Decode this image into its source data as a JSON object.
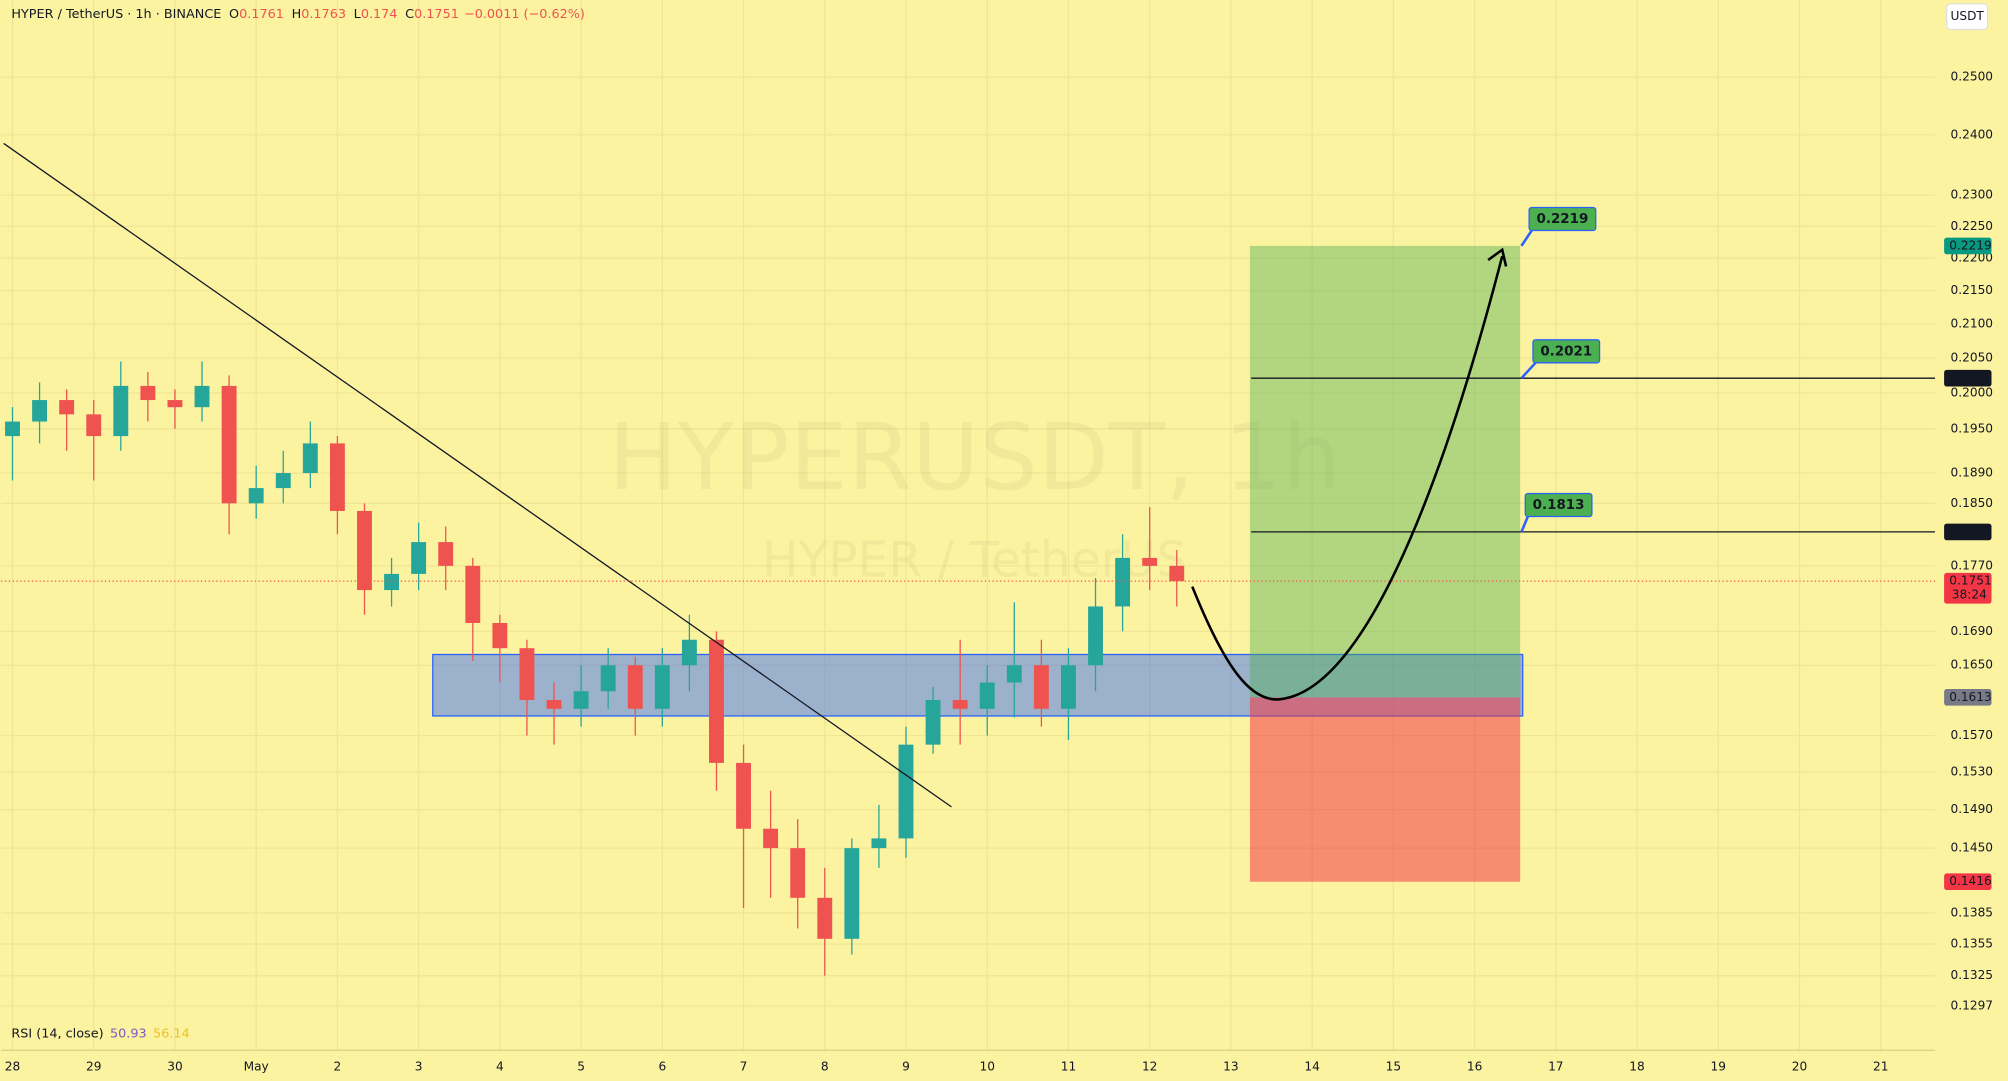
{
  "chart_data": {
    "type": "candlestick",
    "symbol": "HYPER / TetherUS · 1h · BINANCE",
    "ohlc_legend": [
      {
        "label": "O",
        "value": 0.1761
      },
      {
        "label": "H",
        "value": 0.1763
      },
      {
        "label": "L",
        "value": 0.174
      },
      {
        "label": "C",
        "value": 0.1751
      }
    ],
    "change": "−0.0011 (−0.62%)",
    "watermark": "HYPERUSDT, 1h",
    "watermark_sub": "HYPER / TetherUS",
    "currency_button": "USDT",
    "indicator": {
      "name": "RSI (14, close)",
      "values": [
        50.93,
        56.14
      ],
      "colors": [
        "#7e57c2",
        "#e8c22a"
      ]
    },
    "log_scale": true,
    "grid": true,
    "up_color": "#26a69a",
    "down_color": "#ef5350",
    "xlim": [
      -0.14,
      23.67
    ],
    "xticks": [
      {
        "value": 0,
        "label": "28"
      },
      {
        "value": 1,
        "label": "29"
      },
      {
        "value": 2,
        "label": "30"
      },
      {
        "value": 3,
        "label": "May"
      },
      {
        "value": 4,
        "label": "2"
      },
      {
        "value": 5,
        "label": "3"
      },
      {
        "value": 6,
        "label": "4"
      },
      {
        "value": 7,
        "label": "5"
      },
      {
        "value": 8,
        "label": "6"
      },
      {
        "value": 9,
        "label": "7"
      },
      {
        "value": 10,
        "label": "8"
      },
      {
        "value": 11,
        "label": "9"
      },
      {
        "value": 12,
        "label": "10"
      },
      {
        "value": 13,
        "label": "11"
      },
      {
        "value": 14,
        "label": "12"
      },
      {
        "value": 15,
        "label": "13"
      },
      {
        "value": 16,
        "label": "14"
      },
      {
        "value": 17,
        "label": "15"
      },
      {
        "value": 18,
        "label": "16"
      },
      {
        "value": 19,
        "label": "17"
      },
      {
        "value": 20,
        "label": "18"
      },
      {
        "value": 21,
        "label": "19"
      },
      {
        "value": 22,
        "label": "20"
      },
      {
        "value": 23,
        "label": "21"
      }
    ],
    "ylim": [
      0.128,
      0.264
    ],
    "yticks": [
      {
        "value": 0.25,
        "label": "0.2500"
      },
      {
        "value": 0.24,
        "label": "0.2400"
      },
      {
        "value": 0.23,
        "label": "0.2300"
      },
      {
        "value": 0.225,
        "label": "0.2250"
      },
      {
        "value": 0.22,
        "label": "0.2200"
      },
      {
        "value": 0.215,
        "label": "0.2150"
      },
      {
        "value": 0.21,
        "label": "0.2100"
      },
      {
        "value": 0.205,
        "label": "0.2050"
      },
      {
        "value": 0.2,
        "label": "0.2000"
      },
      {
        "value": 0.195,
        "label": "0.1950"
      },
      {
        "value": 0.189,
        "label": "0.1890"
      },
      {
        "value": 0.185,
        "label": "0.1850"
      },
      {
        "value": 0.177,
        "label": "0.1770"
      },
      {
        "value": 0.169,
        "label": "0.1690"
      },
      {
        "value": 0.165,
        "label": "0.1650"
      },
      {
        "value": 0.157,
        "label": "0.1570"
      },
      {
        "value": 0.153,
        "label": "0.1530"
      },
      {
        "value": 0.149,
        "label": "0.1490"
      },
      {
        "value": 0.145,
        "label": "0.1450"
      },
      0.1385,
      0.1355,
      0.1325,
      0.1297
    ],
    "x": [
      0,
      0.3333,
      0.6667,
      1,
      1.3333,
      1.6667,
      2,
      2.3333,
      2.6667,
      3,
      3.3333,
      3.6667,
      4,
      4.3333,
      4.6667,
      5,
      5.3333,
      5.6667,
      6,
      6.3333,
      6.6667,
      7,
      7.3333,
      7.6667,
      8,
      8.3333,
      8.6667,
      9,
      9.3333,
      9.6667,
      10,
      10.3333,
      10.6667,
      11,
      11.3333,
      11.6667,
      12,
      12.3333,
      12.6667,
      13,
      13.3333,
      13.6667,
      14,
      14.3333
    ],
    "open": [
      0.194,
      0.196,
      0.199,
      0.197,
      0.194,
      0.201,
      0.199,
      0.198,
      0.201,
      0.185,
      0.187,
      0.189,
      0.193,
      0.184,
      0.174,
      0.176,
      0.18,
      0.177,
      0.17,
      0.167,
      0.161,
      0.16,
      0.162,
      0.165,
      0.16,
      0.165,
      0.168,
      0.154,
      0.147,
      0.145,
      0.14,
      0.136,
      0.145,
      0.146,
      0.156,
      0.161,
      0.16,
      0.163,
      0.165,
      0.16,
      0.165,
      0.172,
      0.178,
      0.177
    ],
    "high": [
      0.198,
      0.2015,
      0.2005,
      0.199,
      0.2045,
      0.203,
      0.2005,
      0.2045,
      0.2025,
      0.19,
      0.192,
      0.196,
      0.194,
      0.185,
      0.178,
      0.1825,
      0.182,
      0.178,
      0.171,
      0.168,
      0.163,
      0.165,
      0.167,
      0.166,
      0.167,
      0.171,
      0.169,
      0.156,
      0.151,
      0.148,
      0.143,
      0.146,
      0.1495,
      0.158,
      0.1625,
      0.168,
      0.165,
      0.1725,
      0.168,
      0.167,
      0.1755,
      0.181,
      0.1845,
      0.179
    ],
    "low": [
      0.188,
      0.193,
      0.192,
      0.188,
      0.192,
      0.196,
      0.195,
      0.196,
      0.181,
      0.183,
      0.185,
      0.187,
      0.181,
      0.171,
      0.172,
      0.174,
      0.174,
      0.1655,
      0.163,
      0.157,
      0.156,
      0.158,
      0.16,
      0.157,
      0.158,
      0.162,
      0.151,
      0.139,
      0.14,
      0.137,
      0.1325,
      0.1345,
      0.143,
      0.144,
      0.155,
      0.156,
      0.157,
      0.159,
      0.158,
      0.1565,
      0.162,
      0.169,
      0.174,
      0.172
    ],
    "close": [
      0.196,
      0.199,
      0.197,
      0.194,
      0.201,
      0.199,
      0.198,
      0.201,
      0.185,
      0.187,
      0.189,
      0.193,
      0.184,
      0.174,
      0.176,
      0.18,
      0.177,
      0.17,
      0.167,
      0.161,
      0.16,
      0.162,
      0.165,
      0.16,
      0.165,
      0.168,
      0.154,
      0.147,
      0.145,
      0.14,
      0.136,
      0.145,
      0.146,
      0.156,
      0.161,
      0.16,
      0.163,
      0.165,
      0.16,
      0.165,
      0.172,
      0.178,
      0.177,
      0.1751
    ],
    "levels": {
      "target": 0.2219,
      "tp1": 0.2021,
      "tp2": 0.1813,
      "last": 0.1751,
      "entry": 0.1613,
      "stop": 0.1416
    },
    "countdown": "38:24"
  }
}
